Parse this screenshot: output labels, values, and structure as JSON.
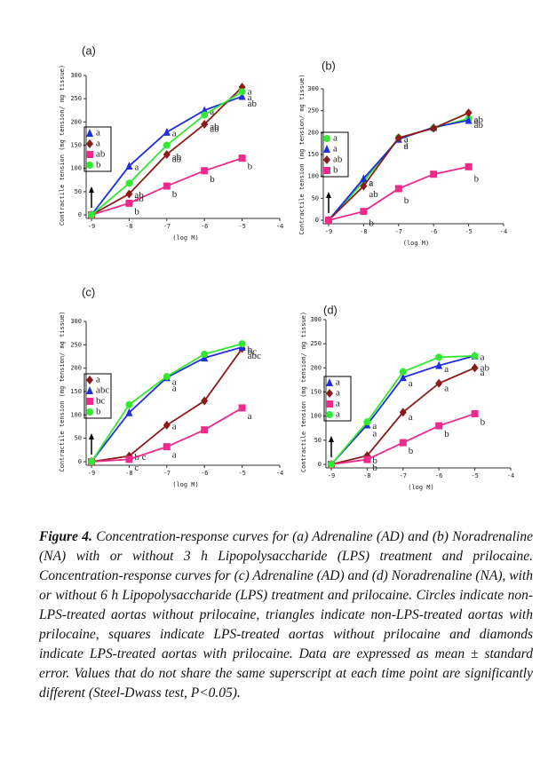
{
  "chart_data": [
    {
      "type": "line",
      "panel": "(a)",
      "ylabel": "Contractile tension (mg tension/ mg tissue)",
      "xlabel": "(log M)",
      "x": [
        -9,
        -8,
        -7,
        -6,
        -5
      ],
      "xlim": [
        -9,
        -4
      ],
      "xticks": [
        -9,
        -8,
        -7,
        -6,
        -5,
        -4
      ],
      "ylim": [
        0,
        300
      ],
      "yticks": [
        0,
        50,
        100,
        150,
        200,
        250,
        300
      ],
      "series": [
        {
          "marker": "triangle",
          "color": "#1f2fe0",
          "values": [
            0,
            105,
            178,
            225,
            255
          ],
          "letters": [
            "a",
            "a",
            "a",
            "a",
            "a"
          ]
        },
        {
          "marker": "diamond",
          "color": "#8b1a1a",
          "values": [
            0,
            45,
            130,
            195,
            275
          ],
          "letters": [
            "a",
            "ab",
            "ab",
            "ab",
            "a"
          ]
        },
        {
          "marker": "square",
          "color": "#ee2a8a",
          "values": [
            0,
            25,
            62,
            95,
            122
          ],
          "letters": [
            "ab",
            "b",
            "b",
            "b",
            "b"
          ]
        },
        {
          "marker": "circle",
          "color": "#33e833",
          "values": [
            0,
            68,
            150,
            215,
            265
          ],
          "letters": [
            "b",
            "ab",
            "ab",
            "ab",
            "ab"
          ]
        }
      ]
    },
    {
      "type": "line",
      "panel": "(b)",
      "ylabel": "Contractile tension (mg tension/ mg tissue)",
      "xlabel": "(log M)",
      "x": [
        -9,
        -8,
        -7,
        -6,
        -5
      ],
      "xlim": [
        -9,
        -4
      ],
      "xticks": [
        -9,
        -8,
        -7,
        -6,
        -5,
        -4
      ],
      "ylim": [
        0,
        300
      ],
      "yticks": [
        0,
        50,
        100,
        150,
        200,
        250,
        300
      ],
      "series": [
        {
          "marker": "circle",
          "color": "#33e833",
          "values": [
            0,
            88,
            188,
            210,
            232
          ],
          "letters": [
            "a",
            "a",
            "a",
            null,
            "ab"
          ]
        },
        {
          "marker": "triangle",
          "color": "#1f2fe0",
          "values": [
            0,
            95,
            185,
            212,
            228
          ],
          "letters": [
            "a",
            "a",
            "a",
            null,
            "ab"
          ]
        },
        {
          "marker": "diamond",
          "color": "#8b1a1a",
          "values": [
            0,
            78,
            188,
            210,
            245
          ],
          "letters": [
            "ab",
            "ab",
            "a",
            null,
            "a"
          ]
        },
        {
          "marker": "square",
          "color": "#ee2a8a",
          "values": [
            0,
            20,
            72,
            105,
            122
          ],
          "letters": [
            "b",
            "b",
            "b",
            null,
            "b"
          ]
        }
      ]
    },
    {
      "type": "line",
      "panel": "(c)",
      "ylabel": "Contractile tension (mg tension/ mg tissue)",
      "xlabel": "(log M)",
      "x": [
        -9,
        -8,
        -7,
        -6,
        -5
      ],
      "xlim": [
        -9,
        -4
      ],
      "xticks": [
        -9,
        -8,
        -7,
        -6,
        -5,
        -4
      ],
      "ylim": [
        0,
        300
      ],
      "yticks": [
        0,
        50,
        100,
        150,
        200,
        250,
        300
      ],
      "series": [
        {
          "marker": "diamond",
          "color": "#8b1a1a",
          "values": [
            0,
            12,
            78,
            130,
            242
          ],
          "letters": [
            "a",
            "b c",
            "a",
            null,
            "b"
          ]
        },
        {
          "marker": "triangle",
          "color": "#1f2fe0",
          "values": [
            0,
            105,
            180,
            222,
            245
          ],
          "letters": [
            "abc",
            null,
            "a",
            null,
            "bc"
          ]
        },
        {
          "marker": "square",
          "color": "#ee2a8a",
          "values": [
            0,
            5,
            32,
            68,
            115
          ],
          "letters": [
            "bc",
            "c",
            "a",
            null,
            "a"
          ]
        },
        {
          "marker": "circle",
          "color": "#33e833",
          "values": [
            0,
            122,
            182,
            230,
            252
          ],
          "letters": [
            "b",
            null,
            "a",
            null,
            "abc"
          ]
        }
      ]
    },
    {
      "type": "line",
      "panel": "(d)",
      "ylabel": "Contractile tension (mg tension/ mg tissue)",
      "xlabel": "(log M)",
      "x": [
        -9,
        -8,
        -7,
        -6,
        -5
      ],
      "xlim": [
        -9,
        -4
      ],
      "xticks": [
        -9,
        -8,
        -7,
        -6,
        -5,
        -4
      ],
      "ylim": [
        0,
        300
      ],
      "yticks": [
        0,
        50,
        100,
        150,
        200,
        250,
        300
      ],
      "series": [
        {
          "marker": "triangle",
          "color": "#1f2fe0",
          "values": [
            0,
            82,
            180,
            205,
            225
          ],
          "letters": [
            "a",
            "a",
            null,
            null,
            "a"
          ]
        },
        {
          "marker": "diamond",
          "color": "#8b1a1a",
          "values": [
            0,
            18,
            108,
            168,
            200
          ],
          "letters": [
            "a",
            "b",
            "a",
            "a",
            "a"
          ]
        },
        {
          "marker": "square",
          "color": "#ee2a8a",
          "values": [
            0,
            10,
            45,
            80,
            105
          ],
          "letters": [
            "a",
            "b",
            "b",
            "b",
            "b"
          ]
        },
        {
          "marker": "circle",
          "color": "#33e833",
          "values": [
            0,
            88,
            192,
            222,
            225
          ],
          "letters": [
            "a",
            "a",
            "a",
            "a",
            "ab"
          ]
        }
      ]
    }
  ],
  "caption": {
    "label": "Figure 4.",
    "text": "Concentration-response curves for (a) Adrenaline (AD) and (b) Noradrenaline (NA) with or without 3 h Lipopolysaccharide (LPS) treatment and prilocaine. Concentration-response curves for (c) Adrenaline (AD) and (d) Noradrenaline (NA), with or without 6 h Lipopolysaccharide (LPS) treatment and prilocaine. Circles indicate non-LPS-treated aortas without prilocaine, triangles indicate non-LPS-treated aortas with prilocaine, squares indicate LPS-treated aortas without prilocaine and diamonds indicate LPS-treated aortas with prilocaine. Data are expressed as mean ± standard error. Values that do not share the same superscript at each time point are significantly different (Steel-Dwass test, P<0.05)."
  }
}
